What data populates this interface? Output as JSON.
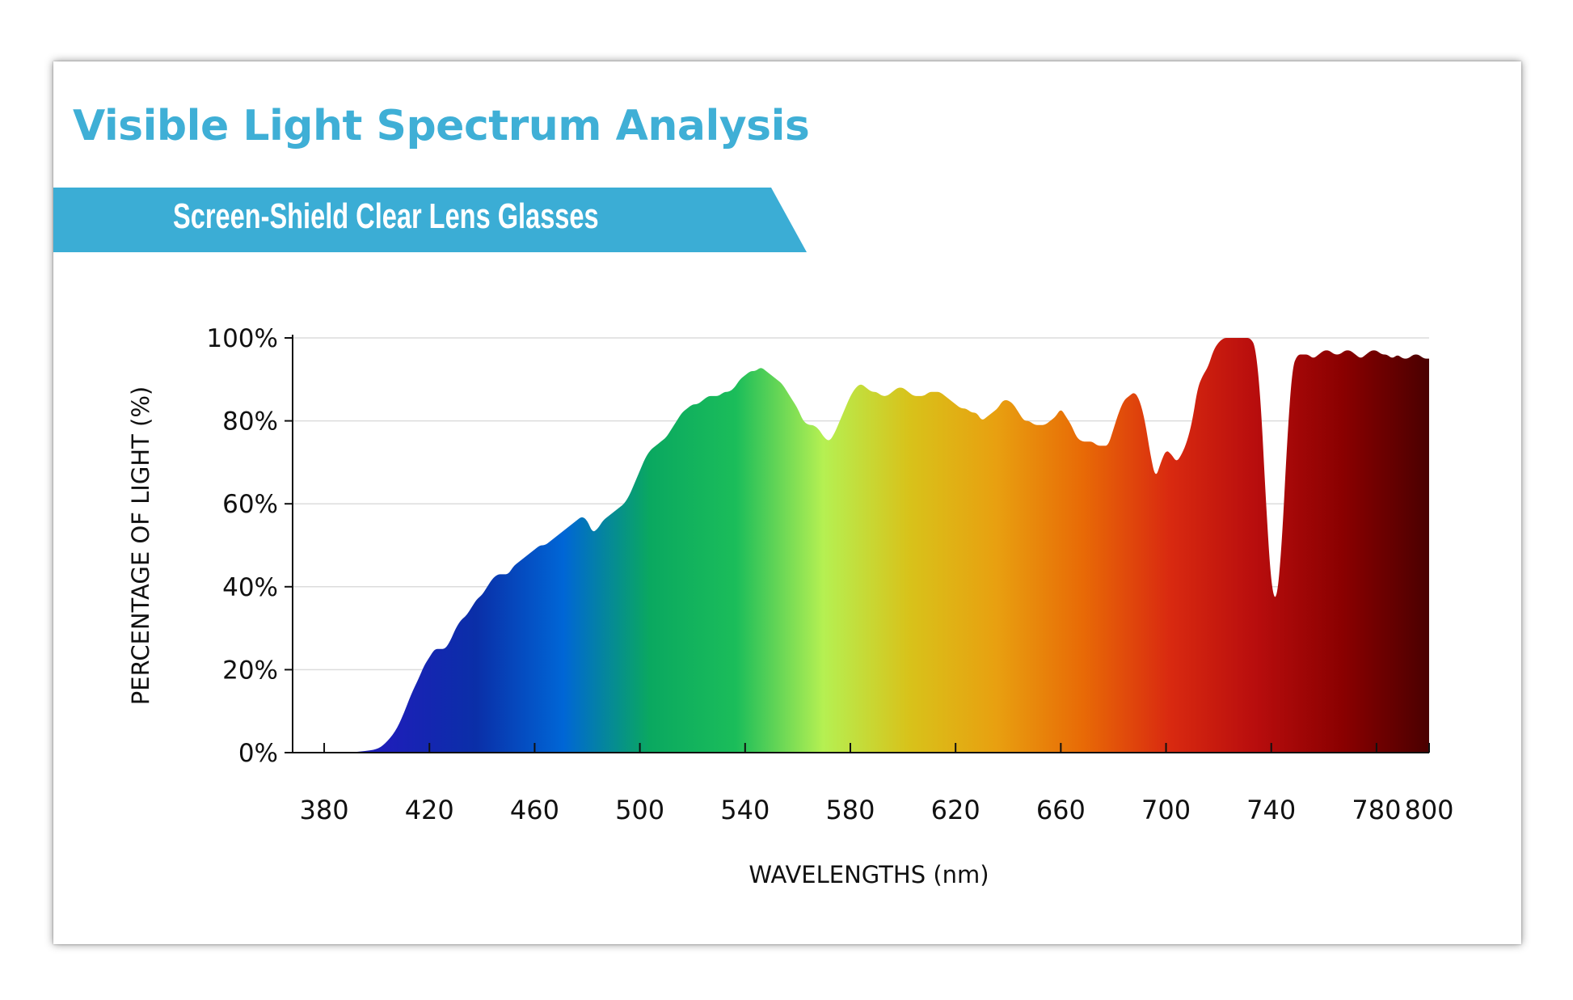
{
  "card": {
    "title": "Visible Light Spectrum Analysis",
    "subtitle": "Screen-Shield Clear Lens Glasses",
    "title_color": "#3fafd6",
    "banner_color": "#3badd5"
  },
  "chart_data": {
    "type": "area",
    "title": "",
    "xlabel": "WAVELENGTHS (nm)",
    "ylabel": "PERCENTAGE OF LIGHT (%)",
    "xlim": [
      368,
      800
    ],
    "ylim": [
      0,
      100
    ],
    "x_ticks": [
      380,
      420,
      460,
      500,
      540,
      580,
      620,
      660,
      700,
      740,
      780,
      800
    ],
    "y_ticks": [
      0,
      20,
      40,
      60,
      80,
      100
    ],
    "y_tick_labels": [
      "0%",
      "20%",
      "40%",
      "60%",
      "80%",
      "100%"
    ],
    "grid": "horizontal",
    "fill": "visible-spectrum gradient",
    "series": [
      {
        "x": [
          380,
          390,
          395,
          400,
          403,
          407,
          410,
          413,
          416,
          418,
          420,
          422,
          424,
          426,
          428,
          430,
          432,
          434,
          436,
          438,
          440,
          442,
          444,
          446,
          448,
          450,
          452,
          454,
          456,
          458,
          460,
          462,
          464,
          466,
          468,
          470,
          472,
          474,
          476,
          478,
          480,
          482,
          484,
          486,
          488,
          490,
          492,
          494,
          496,
          498,
          500,
          502,
          504,
          506,
          508,
          510,
          512,
          514,
          516,
          518,
          520,
          522,
          524,
          526,
          528,
          530,
          532,
          534,
          536,
          538,
          540,
          542,
          544,
          546,
          548,
          550,
          552,
          554,
          556,
          558,
          560,
          562,
          564,
          566,
          568,
          570,
          572,
          574,
          576,
          578,
          580,
          582,
          584,
          586,
          588,
          590,
          592,
          594,
          596,
          598,
          600,
          602,
          604,
          606,
          608,
          610,
          612,
          614,
          616,
          618,
          620,
          622,
          624,
          626,
          628,
          630,
          632,
          634,
          636,
          638,
          640,
          642,
          644,
          646,
          648,
          650,
          652,
          654,
          656,
          658,
          660,
          662,
          664,
          666,
          668,
          670,
          672,
          674,
          676,
          678,
          680,
          682,
          684,
          686,
          688,
          690,
          692,
          694,
          696,
          698,
          700,
          702,
          704,
          706,
          708,
          710,
          712,
          714,
          716,
          718,
          720,
          722,
          724,
          726,
          728,
          730,
          732,
          734,
          736,
          738,
          740,
          742,
          744,
          746,
          748,
          750,
          752,
          754,
          756,
          758,
          760,
          762,
          764,
          766,
          768,
          770,
          772,
          774,
          776,
          778,
          780,
          782,
          784,
          786,
          788,
          790,
          792,
          794,
          796,
          798,
          800
        ],
        "values": [
          0,
          0.1,
          0.3,
          0.8,
          2,
          5,
          9,
          14,
          18,
          21,
          23,
          25,
          25,
          25,
          27,
          30,
          32,
          33,
          35,
          37,
          38,
          40,
          42,
          43,
          43,
          43,
          45,
          46,
          47,
          48,
          49,
          50,
          50,
          51,
          52,
          53,
          54,
          55,
          56,
          57,
          56,
          53,
          54,
          56,
          57,
          58,
          59,
          60,
          62,
          65,
          68,
          71,
          73,
          74,
          75,
          76,
          78,
          80,
          82,
          83,
          84,
          84,
          85,
          86,
          86,
          86,
          87,
          87,
          88,
          90,
          91,
          92,
          92,
          93,
          92,
          91,
          90,
          89,
          87,
          85,
          83,
          80,
          79,
          79,
          78,
          76,
          75,
          77,
          80,
          83,
          86,
          88,
          89,
          88,
          87,
          87,
          86,
          86,
          87,
          88,
          88,
          87,
          86,
          86,
          86,
          87,
          87,
          87,
          86,
          85,
          84,
          83,
          83,
          82,
          82,
          80,
          81,
          82,
          83,
          85,
          85,
          84,
          82,
          80,
          80,
          79,
          79,
          79,
          80,
          81,
          83,
          81,
          79,
          76,
          75,
          75,
          75,
          74,
          74,
          74,
          78,
          82,
          85,
          86,
          87,
          85,
          80,
          72,
          66,
          70,
          73,
          72,
          70,
          72,
          75,
          80,
          88,
          91,
          93,
          97,
          99,
          100,
          100,
          100,
          100,
          100,
          100,
          98,
          85,
          60,
          40,
          36,
          50,
          75,
          93,
          96,
          96,
          96,
          95,
          96,
          97,
          97,
          96,
          96,
          97,
          97,
          96,
          95,
          96,
          97,
          97,
          96,
          96,
          95,
          96,
          95,
          95,
          96,
          96,
          95,
          95
        ]
      }
    ],
    "colors": [
      "#1c1fb8",
      "#0a2fa8",
      "#0066d6",
      "#0aa860",
      "#1bbd5a",
      "#b5f052",
      "#d8c21a",
      "#e8a010",
      "#e86a06",
      "#d92a10",
      "#b80d0d",
      "#8a0000",
      "#4a0000"
    ]
  }
}
